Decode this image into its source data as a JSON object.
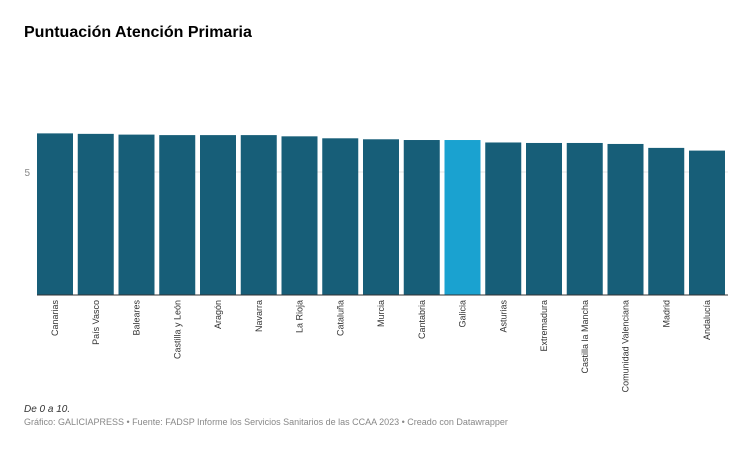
{
  "chart_data": {
    "type": "bar",
    "title": "Puntuación Atención Primaria",
    "categories": [
      "Canarias",
      "País Vasco",
      "Baleares",
      "Castilla y León",
      "Aragón",
      "Navarra",
      "La Rioja",
      "Cataluña",
      "Murcia",
      "Cantabria",
      "Galicia",
      "Asturias",
      "Extremadura",
      "Castilla la Mancha",
      "Comunidad Valenciana",
      "Madrid",
      "Andalucía"
    ],
    "values": [
      6.57,
      6.55,
      6.52,
      6.5,
      6.5,
      6.5,
      6.45,
      6.37,
      6.33,
      6.3,
      6.3,
      6.2,
      6.18,
      6.18,
      6.14,
      5.98,
      5.87
    ],
    "highlight": "Galicia",
    "yticks": [
      5
    ],
    "ylim": [
      0,
      10
    ],
    "grid": true,
    "colors": {
      "bar": "#175e78",
      "highlight": "#1aa2d0",
      "grid": "#e5e5e5"
    }
  },
  "notes": "De 0 a 10.",
  "credit": "Gráfico: GALICIAPRESS • Fuente: FADSP Informe los Servicios Sanitarios de las CCAA 2023  • Creado con Datawrapper"
}
